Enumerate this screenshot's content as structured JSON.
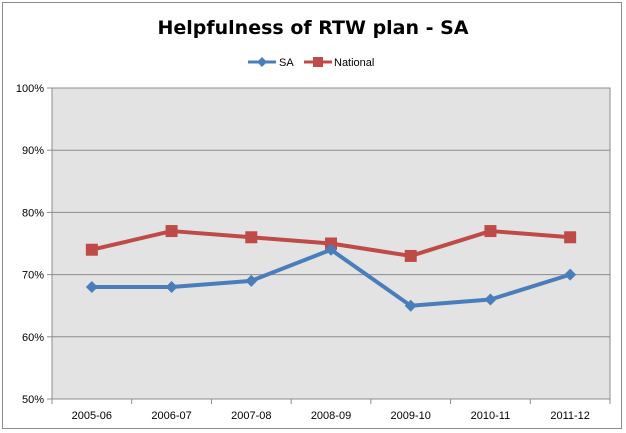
{
  "chart_data": {
    "type": "line",
    "title": "Helpfulness of RTW plan - SA",
    "categories": [
      "2005-06",
      "2006-07",
      "2007-08",
      "2008-09",
      "2009-10",
      "2010-11",
      "2011-12"
    ],
    "ylim": [
      50,
      100
    ],
    "yticks": [
      50,
      60,
      70,
      80,
      90,
      100
    ],
    "ytick_labels": [
      "50%",
      "60%",
      "70%",
      "80%",
      "90%",
      "100%"
    ],
    "grid": true,
    "legend_position": "top",
    "plot_background": "#e3e3e3",
    "series": [
      {
        "name": "SA",
        "values": [
          68,
          68,
          69,
          74,
          65,
          66,
          70
        ],
        "color": "#4a7ebb",
        "marker": "diamond"
      },
      {
        "name": "National",
        "values": [
          74,
          77,
          76,
          75,
          73,
          77,
          76
        ],
        "color": "#be4b48",
        "marker": "square"
      }
    ]
  }
}
